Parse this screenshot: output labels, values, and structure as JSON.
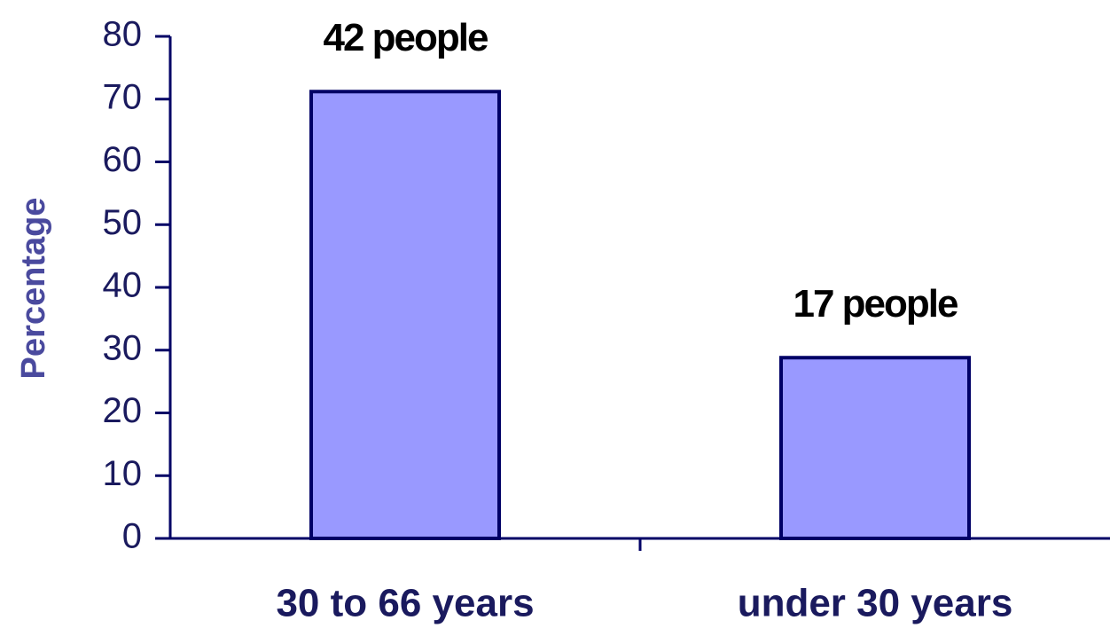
{
  "chart_data": {
    "type": "bar",
    "y_label": "Percentage",
    "categories": [
      "30 to 66 years",
      "under 30 years"
    ],
    "values": [
      71.2,
      28.8
    ],
    "annotations": [
      "42 people",
      "17 people"
    ],
    "color": "#9999ff",
    "ylim": [
      0,
      80
    ],
    "yticks": [
      0,
      10,
      20,
      30,
      40,
      50,
      60,
      70,
      80
    ],
    "grid": false
  }
}
